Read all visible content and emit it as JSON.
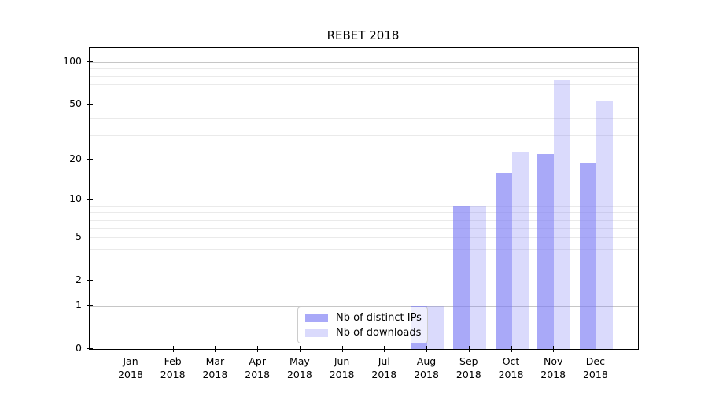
{
  "title": "REBET 2018",
  "colors": {
    "distinct_ips": "rgba(123,123,245,0.65)",
    "downloads": "rgba(123,123,245,0.28)",
    "grid_major": "#c6c6c6",
    "grid_minor": "#eaeaea",
    "axis": "#000000",
    "legend_border": "#cccccc",
    "legend_bg": "rgba(255,255,255,0.8)"
  },
  "legend": {
    "items": [
      {
        "label": "Nb of distinct IPs",
        "color_key": "distinct_ips"
      },
      {
        "label": "Nb of downloads",
        "color_key": "downloads"
      }
    ],
    "position": "lower center"
  },
  "chart_data": {
    "type": "bar",
    "title": "REBET 2018",
    "categories": [
      "Jan 2018",
      "Feb 2018",
      "Mar 2018",
      "Apr 2018",
      "May 2018",
      "Jun 2018",
      "Jul 2018",
      "Aug 2018",
      "Sep 2018",
      "Oct 2018",
      "Nov 2018",
      "Dec 2018"
    ],
    "series": [
      {
        "name": "Nb of distinct IPs",
        "color_key": "distinct_ips",
        "values": [
          0,
          0,
          0,
          0,
          0,
          0,
          0,
          1,
          9,
          16,
          22,
          19
        ]
      },
      {
        "name": "Nb of downloads",
        "color_key": "downloads",
        "values": [
          0,
          0,
          0,
          0,
          0,
          0,
          0,
          1,
          9,
          23,
          75,
          53
        ]
      }
    ],
    "xlabel": "",
    "ylabel": "",
    "yscale": "log1p",
    "ylim": [
      0,
      125
    ],
    "yticks": [
      0,
      1,
      2,
      5,
      10,
      20,
      50,
      100
    ],
    "grid": {
      "major": [
        1,
        10,
        100
      ],
      "minor": [
        2,
        3,
        4,
        5,
        6,
        7,
        8,
        9,
        20,
        30,
        40,
        50,
        60,
        70,
        80,
        90
      ]
    },
    "legend_position": "lower center"
  }
}
